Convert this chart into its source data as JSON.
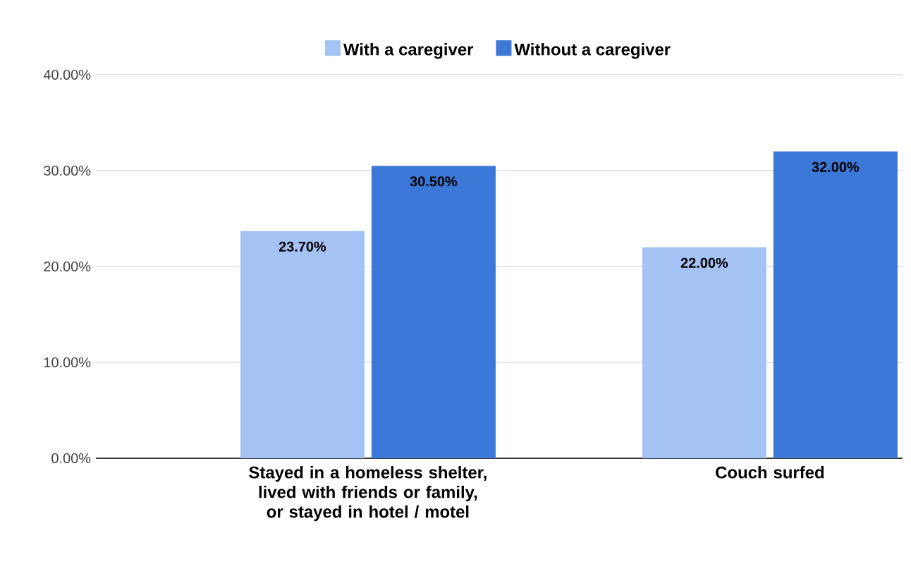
{
  "chart_data": {
    "type": "bar",
    "categories": [
      "Stayed in a homeless shelter, lived with friends or family, or stayed in hotel / motel",
      "Couch surfed"
    ],
    "series": [
      {
        "name": "With a caregiver",
        "color": "#a4c2f4",
        "values": [
          23.7,
          22.0
        ],
        "value_labels": [
          "23.70%",
          "22.00%"
        ]
      },
      {
        "name": "Without a caregiver",
        "color": "#3c78d8",
        "values": [
          30.5,
          32.0
        ],
        "value_labels": [
          "30.50%",
          "32.00%"
        ]
      }
    ],
    "ylim": [
      0,
      40
    ],
    "yticks": [
      {
        "value": 0,
        "label": "0.00%"
      },
      {
        "value": 10,
        "label": "10.00%"
      },
      {
        "value": 20,
        "label": "20.00%"
      },
      {
        "value": 30,
        "label": "30.00%"
      },
      {
        "value": 40,
        "label": "40.00%"
      }
    ],
    "grid": "y",
    "legend": "top"
  }
}
